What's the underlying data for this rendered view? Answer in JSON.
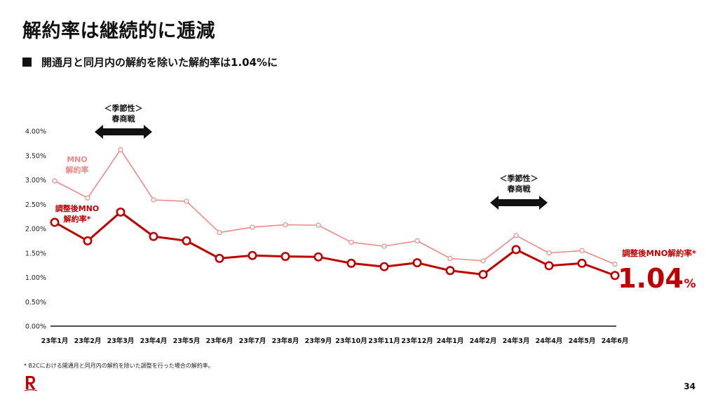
{
  "slide": {
    "title": "解約率は継続的に逓減",
    "subtitle": "開通月と同月内の解約を除いた解約率は1.04%に",
    "footnote": "* B2Cにおける開通月と同月内の解約を除いた調整を行った場合の解約率。",
    "page_number": "34",
    "logo_icon": "rakuten-r-logo-icon"
  },
  "chart_data": {
    "type": "line",
    "categories": [
      "23年1月",
      "23年2月",
      "23年3月",
      "23年4月",
      "23年5月",
      "23年6月",
      "23年7月",
      "23年8月",
      "23年9月",
      "23年10月",
      "23年11月",
      "23年12月",
      "24年1月",
      "24年2月",
      "24年3月",
      "24年4月",
      "24年5月",
      "24年6月"
    ],
    "ylim": [
      0,
      4.0
    ],
    "yticks": [
      "0.00%",
      "0.50%",
      "1.00%",
      "1.50%",
      "2.00%",
      "2.50%",
      "3.00%",
      "3.50%",
      "4.00%"
    ],
    "grid": false,
    "series": [
      {
        "name_lines": [
          "MNO",
          "解約率"
        ],
        "color": "#f08a87",
        "values": [
          2.98,
          2.63,
          3.62,
          2.59,
          2.56,
          1.92,
          2.03,
          2.08,
          2.07,
          1.72,
          1.64,
          1.75,
          1.39,
          1.34,
          1.86,
          1.5,
          1.55,
          1.27
        ]
      },
      {
        "name_lines": [
          "調整後MNO",
          "解約率*"
        ],
        "color": "#bf0000",
        "values": [
          2.13,
          1.75,
          2.34,
          1.84,
          1.75,
          1.39,
          1.45,
          1.43,
          1.42,
          1.29,
          1.22,
          1.3,
          1.14,
          1.06,
          1.57,
          1.24,
          1.29,
          1.04
        ]
      }
    ],
    "annotations": [
      {
        "lines": [
          "＜季節性＞",
          "春商戦"
        ],
        "start": "23年2月",
        "end": "23年4月"
      },
      {
        "lines": [
          "＜季節性＞",
          "春商戦"
        ],
        "start": "24年2月",
        "end": "24年4月"
      }
    ],
    "callout": {
      "label": "調整後MNO解約率*",
      "value": "1.04",
      "unit": "%"
    }
  }
}
